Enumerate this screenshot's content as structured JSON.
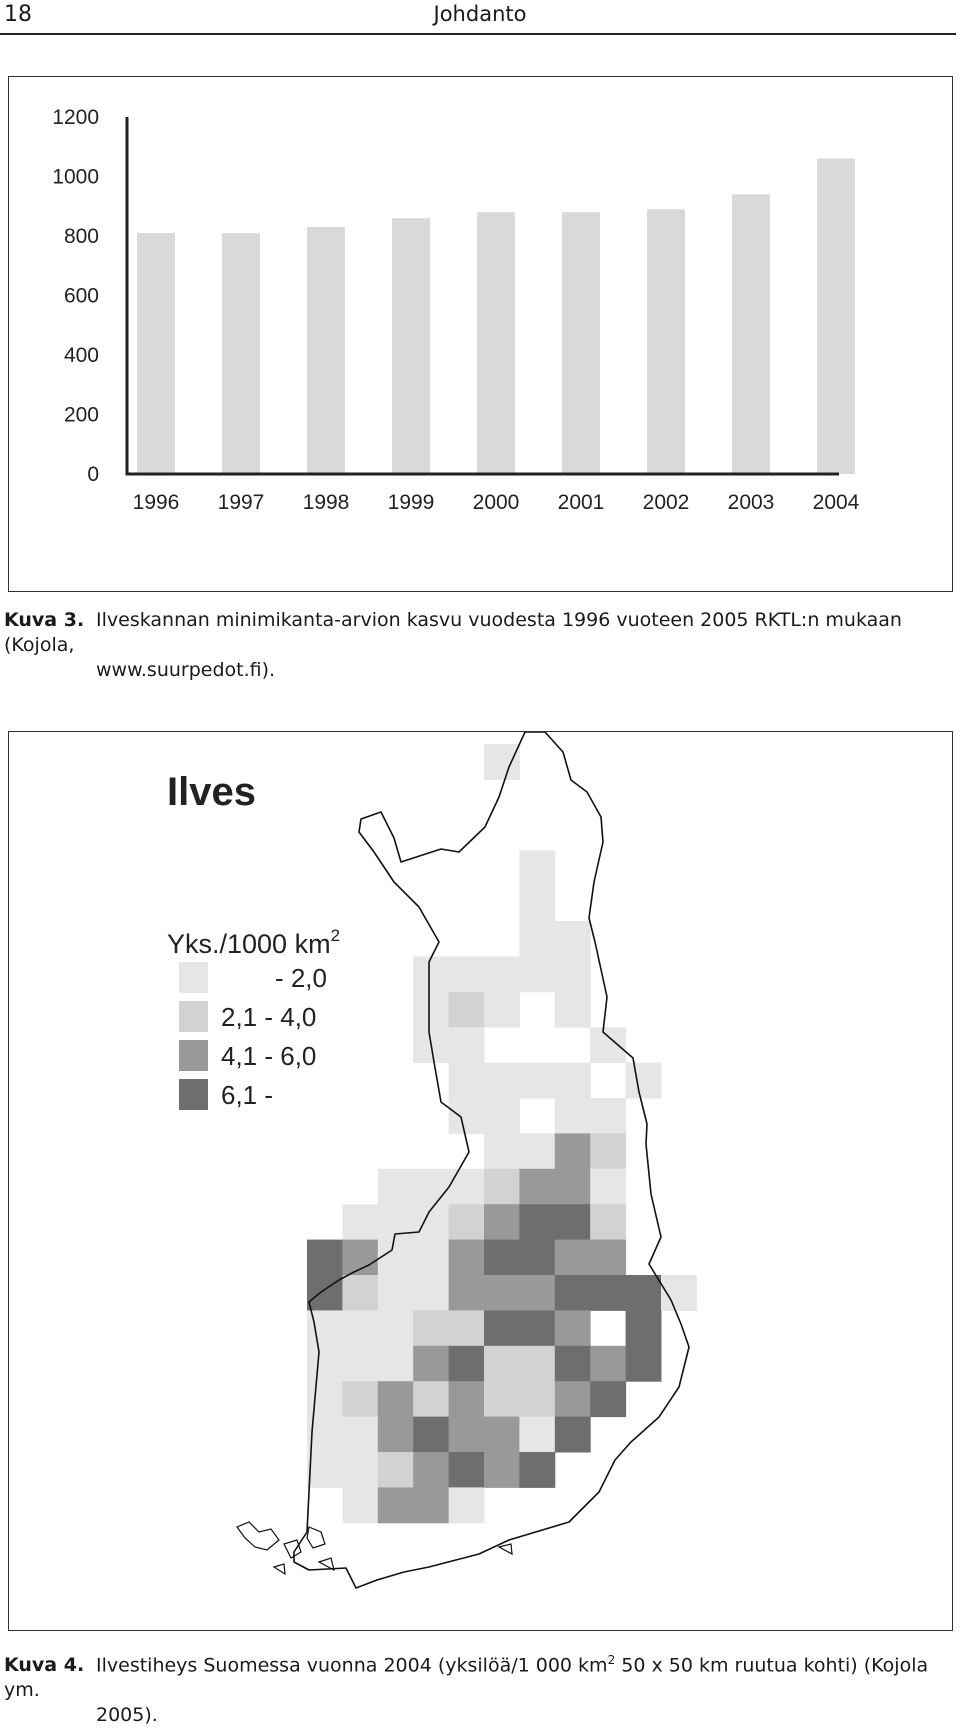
{
  "header": {
    "page_number": "18",
    "running_title": "Johdanto"
  },
  "figure3": {
    "label": "Kuva 3.",
    "caption_line1": "Ilveskannan minimikanta-arvion kasvu vuodesta 1996 vuoteen 2005 RKTL:n mukaan (Kojola,",
    "caption_line2": "www.suurpedot.fi)."
  },
  "chart_data": {
    "type": "bar",
    "categories": [
      "1996",
      "1997",
      "1998",
      "1999",
      "2000",
      "2001",
      "2002",
      "2003",
      "2004"
    ],
    "values": [
      810,
      810,
      830,
      860,
      880,
      880,
      890,
      940,
      1060
    ],
    "yticks": [
      0,
      200,
      400,
      600,
      800,
      1000,
      1200
    ],
    "ylim": [
      0,
      1200
    ],
    "bar_color": "#d9d9d9",
    "grid": false
  },
  "figure4": {
    "label": "Kuva 4.",
    "caption_main": "Ilvestiheys Suomessa vuonna 2004 (yksilöä/1 000 km",
    "caption_sup": "2",
    "caption_rest": " 50 x 50 km ruutua kohti) (Kojola ym.",
    "caption_line2": "2005).",
    "map_title": "Ilves",
    "legend_title": "Yks./1000 km",
    "legend_title_sup": "2",
    "legend": [
      {
        "label": "- 2,0",
        "color": "#e6e6e6"
      },
      {
        "label": "2,1 - 4,0",
        "color": "#d2d2d2"
      },
      {
        "label": "4,1 - 6,0",
        "color": "#999999"
      },
      {
        "label": "6,1 -",
        "color": "#6e6e6e"
      }
    ]
  }
}
